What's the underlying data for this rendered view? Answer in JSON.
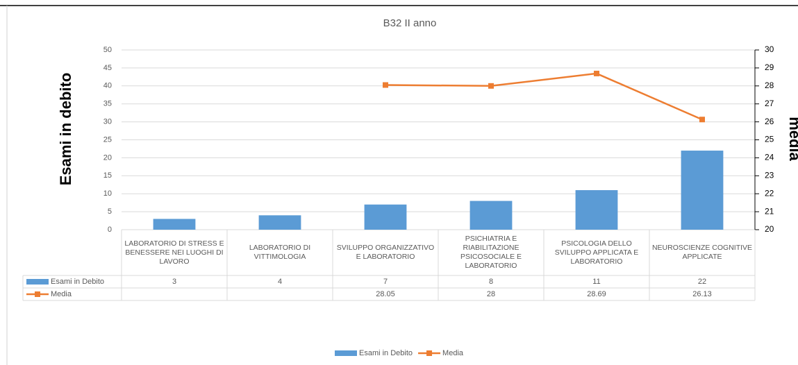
{
  "chart_data": {
    "type": "bar",
    "title": "B32 II anno",
    "y_label": "Esami in debito",
    "y2_label": "media",
    "categories": [
      "LABORATORIO DI STRESS E BENESSERE NEI LUOGHI DI LAVORO",
      "LABORATORIO DI VITTIMOLOGIA",
      "SVILUPPO ORGANIZZATIVO E LABORATORIO",
      "PSICHIATRIA E RIABILITAZIONE PSICOSOCIALE E LABORATORIO",
      "PSICOLOGIA DELLO SVILUPPO APPLICATA E LABORATORIO",
      "NEUROSCIENZE COGNITIVE APPLICATE"
    ],
    "series": [
      {
        "name": "Esami in Debito",
        "type": "bar",
        "color": "#5b9bd5",
        "values": [
          3,
          4,
          7,
          8,
          11,
          22
        ]
      },
      {
        "name": "Media",
        "type": "line",
        "axis": "y2",
        "color": "#ed7d31",
        "values": [
          null,
          null,
          28.05,
          28,
          28.69,
          26.13
        ]
      }
    ],
    "ylim": [
      0,
      50
    ],
    "yticks": [
      0,
      5,
      10,
      15,
      20,
      25,
      30,
      35,
      40,
      45,
      50
    ],
    "y2lim": [
      20,
      30
    ],
    "y2ticks": [
      20,
      21,
      22,
      23,
      24,
      25,
      26,
      27,
      28,
      29,
      30
    ],
    "grid": true,
    "legend": "bottom",
    "data_table": true
  }
}
